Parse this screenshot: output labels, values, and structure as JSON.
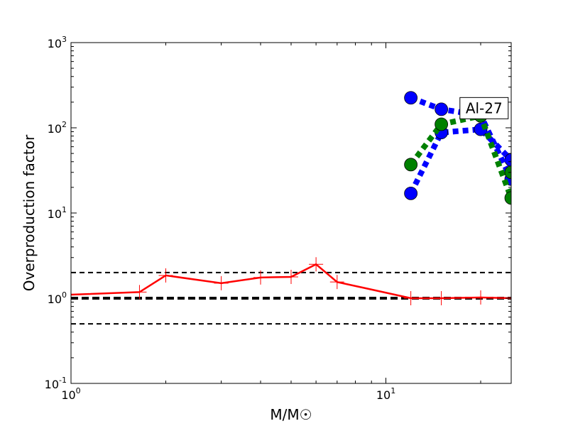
{
  "chart_data": {
    "type": "line",
    "xlabel": "M/M☉",
    "ylabel": "Overproduction factor",
    "xscale": "log",
    "yscale": "log",
    "xlim": [
      1,
      25
    ],
    "ylim": [
      0.1,
      1000
    ],
    "x_ticks": [
      {
        "value": 1,
        "base": "10",
        "exp": "0"
      },
      {
        "value": 10,
        "base": "10",
        "exp": "1"
      }
    ],
    "y_ticks": [
      {
        "value": 0.1,
        "base": "10",
        "exp": "-1"
      },
      {
        "value": 1,
        "base": "10",
        "exp": "0"
      },
      {
        "value": 10,
        "base": "10",
        "exp": "1"
      },
      {
        "value": 100,
        "base": "10",
        "exp": "2"
      },
      {
        "value": 1000,
        "base": "10",
        "exp": "3"
      }
    ],
    "reference_lines": [
      {
        "y": 2.0,
        "style": "dashed",
        "color": "#000000"
      },
      {
        "y": 1.0,
        "style": "dashed-thick",
        "color": "#000000"
      },
      {
        "y": 0.5,
        "style": "dashed",
        "color": "#000000"
      }
    ],
    "annotation": {
      "text": "Al-27",
      "x": 20.5,
      "y": 170
    },
    "series": [
      {
        "color": "#ff0000",
        "style": "solid",
        "marker": "plus",
        "x": [
          1.0,
          1.65,
          2.0,
          3.0,
          4.0,
          5.0,
          6.0,
          7.0,
          12.0,
          15.0,
          20.0,
          25.0
        ],
        "y": [
          1.1,
          1.18,
          1.85,
          1.5,
          1.75,
          1.78,
          2.5,
          1.55,
          1.0,
          1.0,
          1.02,
          1.0
        ],
        "marked": [
          false,
          true,
          true,
          true,
          true,
          true,
          true,
          true,
          true,
          true,
          true,
          false
        ]
      },
      {
        "color": "#0000ff",
        "style": "dotted",
        "marker": "circle",
        "x": [
          12.0,
          15.0,
          20.0,
          25.0
        ],
        "y": [
          17,
          88,
          96,
          42
        ]
      },
      {
        "color": "#0000ff",
        "style": "dotted",
        "marker": "circle",
        "x": [
          12.0,
          15.0,
          20.0,
          25.0
        ],
        "y": [
          225,
          165,
          140,
          25
        ]
      },
      {
        "color": "#008000",
        "style": "dotted",
        "marker": "circle",
        "x": [
          12.0,
          15.0,
          20.0,
          25.0
        ],
        "y": [
          37,
          110,
          138,
          15
        ]
      },
      {
        "color": "#008000",
        "style": "dotted",
        "marker": "circle",
        "x": [
          25.0
        ],
        "y": [
          30
        ]
      }
    ]
  }
}
